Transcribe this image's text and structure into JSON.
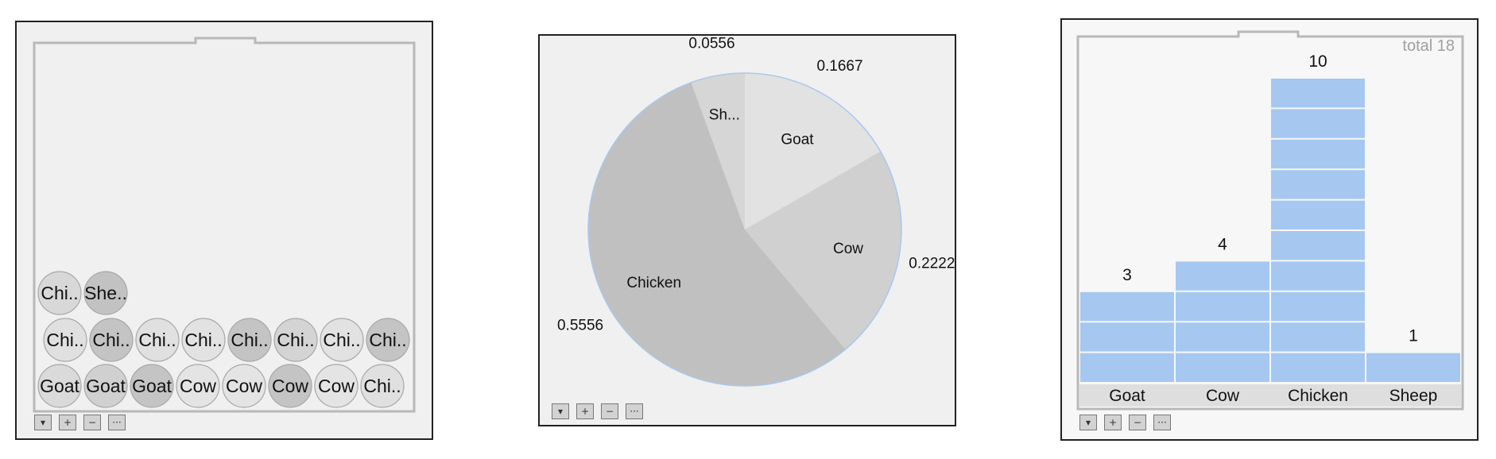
{
  "chart_data": [
    {
      "type": "scatter",
      "chart_form": "stacked-dots",
      "dots": [
        {
          "label": "Chi..",
          "shade": "#d8d8d8"
        },
        {
          "label": "She..",
          "shade": "#c2c2c2"
        },
        {
          "label": "Chi..",
          "shade": "#e0e0e0"
        },
        {
          "label": "Chi..",
          "shade": "#c4c4c4"
        },
        {
          "label": "Chi..",
          "shade": "#e0e0e0"
        },
        {
          "label": "Chi..",
          "shade": "#e2e2e2"
        },
        {
          "label": "Chi..",
          "shade": "#c4c4c4"
        },
        {
          "label": "Chi..",
          "shade": "#d4d4d4"
        },
        {
          "label": "Chi..",
          "shade": "#e2e2e2"
        },
        {
          "label": "Chi..",
          "shade": "#c4c4c4"
        },
        {
          "label": "Goat",
          "shade": "#dadada"
        },
        {
          "label": "Goat",
          "shade": "#d0d0d0"
        },
        {
          "label": "Goat",
          "shade": "#c4c4c4"
        },
        {
          "label": "Cow",
          "shade": "#e4e4e4"
        },
        {
          "label": "Cow",
          "shade": "#e4e4e4"
        },
        {
          "label": "Cow",
          "shade": "#c4c4c4"
        },
        {
          "label": "Cow",
          "shade": "#e4e4e4"
        },
        {
          "label": "Chi..",
          "shade": "#e0e0e0"
        }
      ]
    },
    {
      "type": "pie",
      "slices": [
        {
          "name": "Goat",
          "short": "Goat",
          "value": 0.1667,
          "value_label": "0.1667",
          "color": "#e2e2e2"
        },
        {
          "name": "Cow",
          "short": "Cow",
          "value": 0.2222,
          "value_label": "0.2222",
          "color": "#d0d0d0"
        },
        {
          "name": "Chicken",
          "short": "Chicken",
          "value": 0.5556,
          "value_label": "0.5556",
          "color": "#c0c0c0"
        },
        {
          "name": "Sheep",
          "short": "Sh...",
          "value": 0.0556,
          "value_label": "0.0556",
          "color": "#d6d6d6"
        }
      ],
      "edge_color": "#a9c8ee"
    },
    {
      "type": "bar",
      "chart_form": "stacked-unit-bars",
      "categories": [
        "Goat",
        "Cow",
        "Chicken",
        "Sheep"
      ],
      "values": [
        3,
        4,
        10,
        1
      ],
      "value_labels": [
        "3",
        "4",
        "10",
        "1"
      ],
      "total_label": "total 18",
      "bar_color": "#a6c8f0",
      "ylim": [
        0,
        10
      ]
    }
  ],
  "toolbar": {
    "buttons": [
      {
        "icon": "dropdown-triangle-icon",
        "glyph": "▾"
      },
      {
        "icon": "plus-icon",
        "glyph": "+"
      },
      {
        "icon": "minus-icon",
        "glyph": "−"
      },
      {
        "icon": "more-icon",
        "glyph": "···"
      }
    ]
  }
}
